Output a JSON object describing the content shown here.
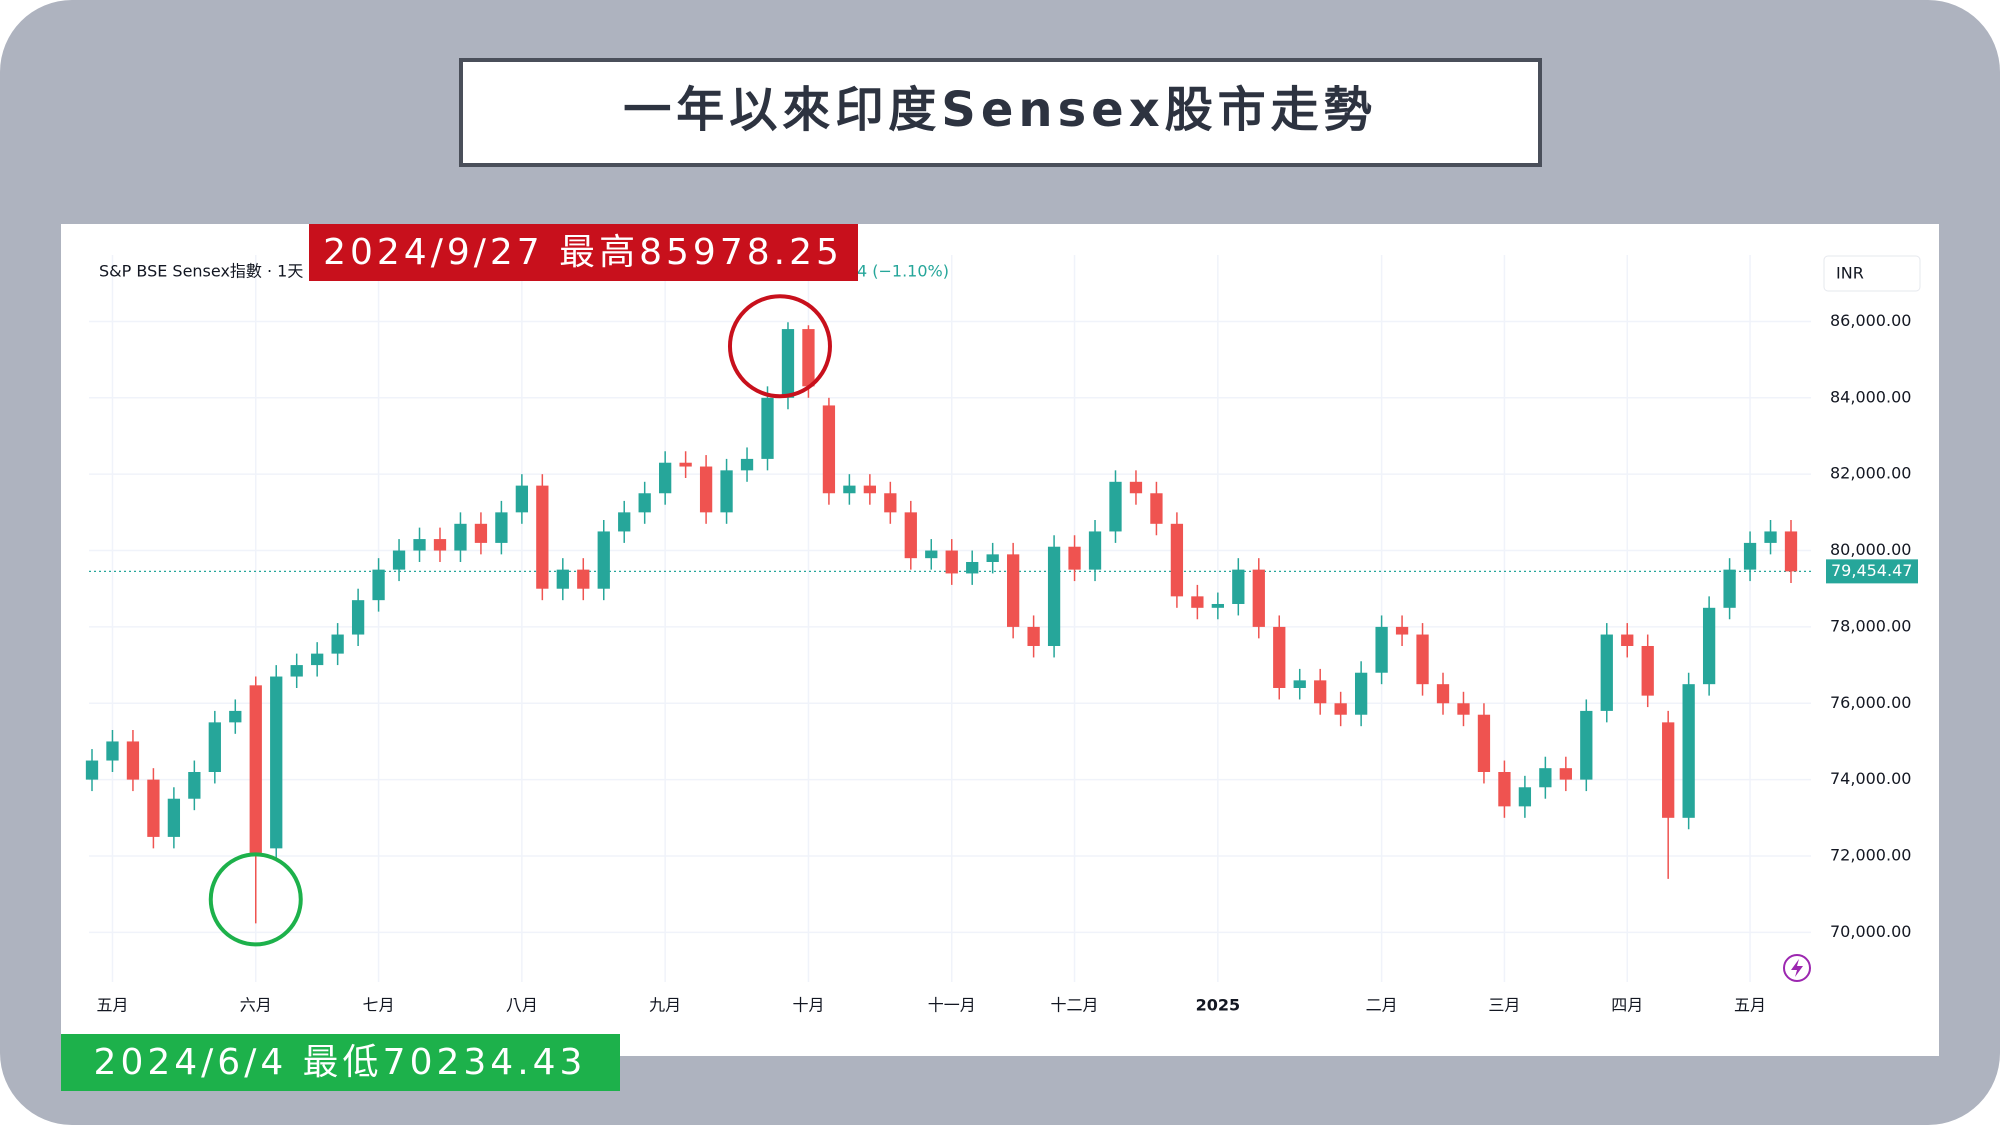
{
  "header": {
    "title": "一年以來印度Sensex股市走勢"
  },
  "annotations": {
    "high": "2024/9/27 最高85978.25",
    "low": "2024/6/4 最低70234.43"
  },
  "chart_data": {
    "type": "candlestick",
    "title": "S&P BSE Sensex指數 · 1天 ·",
    "change_text": "4 (−1.10%)",
    "currency": "INR",
    "up_color": "#26a69a",
    "down_color": "#ef5350",
    "grid": true,
    "categories": [
      null,
      "五月",
      null,
      null,
      null,
      null,
      null,
      null,
      "六月",
      null,
      null,
      null,
      null,
      null,
      "七月",
      null,
      null,
      null,
      null,
      null,
      null,
      "八月",
      null,
      null,
      null,
      null,
      null,
      null,
      "九月",
      null,
      null,
      null,
      null,
      null,
      null,
      "十月",
      null,
      null,
      null,
      null,
      null,
      null,
      "十一月",
      null,
      null,
      null,
      null,
      null,
      "十二月",
      null,
      null,
      null,
      null,
      null,
      null,
      "2025",
      null,
      null,
      null,
      null,
      null,
      null,
      null,
      "二月",
      null,
      null,
      null,
      null,
      null,
      "三月",
      null,
      null,
      null,
      null,
      null,
      "四月",
      null,
      null,
      null,
      null,
      null,
      "五月",
      null,
      null
    ],
    "series": [
      {
        "name": "S&P BSE Sensex",
        "open": [
          74000,
          74500,
          75000,
          74000,
          72500,
          73500,
          74200,
          75500,
          76470,
          72200,
          76700,
          77000,
          77300,
          77800,
          78700,
          79500,
          80000,
          80300,
          80000,
          80700,
          80200,
          81000,
          81700,
          79000,
          79500,
          79000,
          80500,
          81000,
          81500,
          82300,
          82200,
          81000,
          82100,
          82400,
          84000,
          85800,
          83800,
          81500,
          81700,
          81500,
          81000,
          79800,
          80000,
          79400,
          79700,
          79900,
          78000,
          77500,
          80100,
          79500,
          80500,
          81800,
          81500,
          80700,
          78800,
          78500,
          78600,
          79500,
          78000,
          76400,
          76600,
          76000,
          75700,
          76800,
          78000,
          77800,
          76500,
          76000,
          75700,
          74200,
          73300,
          73800,
          74300,
          74000,
          75800,
          77800,
          77500,
          75500,
          73000,
          76500,
          78500,
          79500,
          80200,
          80500
        ],
        "high": [
          74800,
          75300,
          75300,
          74300,
          73800,
          74500,
          75800,
          76100,
          76700,
          77000,
          77300,
          77600,
          78100,
          79000,
          79800,
          80300,
          80600,
          80600,
          81000,
          81000,
          81300,
          82000,
          82000,
          79800,
          79800,
          80800,
          81300,
          81800,
          82600,
          82600,
          82500,
          82400,
          82700,
          84300,
          85978.25,
          85900,
          84000,
          82000,
          82000,
          81800,
          81300,
          80300,
          80300,
          80000,
          80200,
          80200,
          78300,
          80400,
          80400,
          80800,
          82100,
          82100,
          81800,
          81000,
          79100,
          78900,
          79800,
          79800,
          78300,
          76900,
          76900,
          76300,
          77100,
          78300,
          78300,
          78100,
          76800,
          76300,
          76000,
          74500,
          74100,
          74600,
          74600,
          76100,
          78100,
          78100,
          77800,
          75800,
          76800,
          78800,
          79800,
          80500,
          80800,
          80800
        ],
        "low": [
          73700,
          74200,
          73700,
          72200,
          72200,
          73200,
          73900,
          75200,
          70234.43,
          71900,
          76400,
          76700,
          77000,
          77500,
          78400,
          79200,
          79700,
          79700,
          79700,
          79900,
          79900,
          80700,
          78700,
          78700,
          78700,
          78700,
          80200,
          80700,
          81200,
          81900,
          80700,
          80700,
          81800,
          82100,
          83700,
          84000,
          81200,
          81200,
          81200,
          80700,
          79500,
          79500,
          79100,
          79100,
          79400,
          77700,
          77200,
          77200,
          79200,
          79200,
          80200,
          81200,
          80400,
          78500,
          78200,
          78200,
          78300,
          77700,
          76100,
          76100,
          75700,
          75400,
          75400,
          76500,
          77500,
          76200,
          75700,
          75400,
          73900,
          73000,
          73000,
          73500,
          73700,
          73700,
          75500,
          77200,
          75900,
          71400,
          72700,
          76200,
          78200,
          79200,
          79900,
          79150
        ],
        "close": [
          74500,
          75000,
          74000,
          72500,
          73500,
          74200,
          75500,
          75800,
          72080,
          76700,
          77000,
          77300,
          77800,
          78700,
          79500,
          80000,
          80300,
          80000,
          80700,
          80200,
          81000,
          81700,
          79000,
          79500,
          79000,
          80500,
          81000,
          81500,
          82300,
          82200,
          81000,
          82100,
          82400,
          84000,
          85800,
          84300,
          81500,
          81700,
          81500,
          81000,
          79800,
          80000,
          79400,
          79700,
          79900,
          78000,
          77500,
          80100,
          79500,
          80500,
          81800,
          81500,
          80700,
          78800,
          78500,
          78600,
          79500,
          78000,
          76400,
          76600,
          76000,
          75700,
          76800,
          78000,
          77800,
          76500,
          76000,
          75700,
          74200,
          73300,
          73800,
          74300,
          74000,
          75800,
          77800,
          77500,
          76200,
          73000,
          76500,
          78500,
          79500,
          80200,
          80500,
          79454.47
        ]
      }
    ],
    "last_price": {
      "value": 79454.47,
      "label": "79,454.47"
    },
    "ylim": [
      68700,
      87740
    ],
    "yticks": [
      {
        "value": 70000,
        "label": "70,000.00"
      },
      {
        "value": 72000,
        "label": "72,000.00"
      },
      {
        "value": 74000,
        "label": "74,000.00"
      },
      {
        "value": 76000,
        "label": "76,000.00"
      },
      {
        "value": 78000,
        "label": "78,000.00"
      },
      {
        "value": 80000,
        "label": "80,000.00"
      },
      {
        "value": 82000,
        "label": "82,000.00"
      },
      {
        "value": 84000,
        "label": "84,000.00"
      },
      {
        "value": 86000,
        "label": "86,000.00"
      }
    ]
  }
}
